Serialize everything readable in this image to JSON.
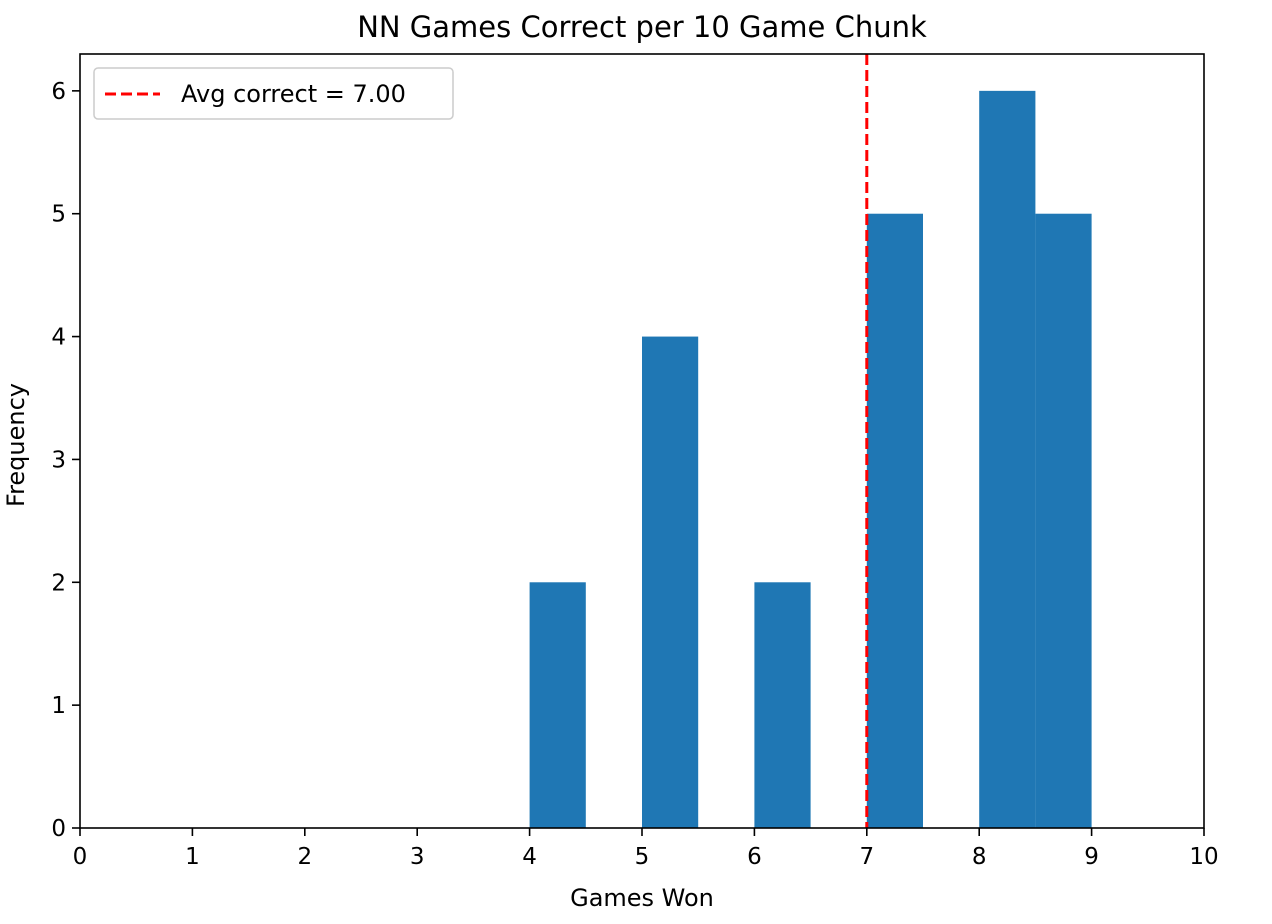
{
  "chart_data": {
    "type": "bar",
    "chart_subtype": "histogram",
    "title": "NN Games Correct per 10 Game Chunk",
    "xlabel": "Games Won",
    "ylabel": "Frequency",
    "xlim": [
      0,
      10
    ],
    "ylim": [
      0,
      6.3
    ],
    "xticks": [
      "0",
      "1",
      "2",
      "3",
      "4",
      "5",
      "6",
      "7",
      "8",
      "9",
      "10"
    ],
    "yticks": [
      "0",
      "1",
      "2",
      "3",
      "4",
      "5",
      "6"
    ],
    "grid": false,
    "bins": [
      {
        "start": 4.0,
        "end": 4.5,
        "count": 2
      },
      {
        "start": 5.0,
        "end": 5.5,
        "count": 4
      },
      {
        "start": 6.0,
        "end": 6.5,
        "count": 2
      },
      {
        "start": 7.0,
        "end": 7.5,
        "count": 5
      },
      {
        "start": 8.0,
        "end": 8.5,
        "count": 6
      },
      {
        "start": 8.5,
        "end": 9.0,
        "count": 5
      }
    ],
    "bar_color": "#1f77b4",
    "reference_line": {
      "orientation": "vertical",
      "x": 7.0,
      "color": "#ff0000",
      "style": "dashed",
      "label": "Avg correct = 7.00"
    },
    "legend": {
      "placement": "top-left",
      "entries": [
        "Avg correct = 7.00"
      ]
    }
  }
}
